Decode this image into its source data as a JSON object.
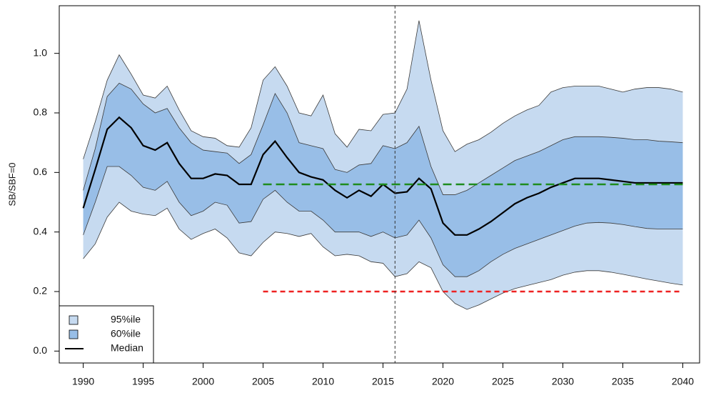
{
  "chart_data": {
    "type": "line",
    "y_label": "SB/SBF=0",
    "x": [
      1990,
      1991,
      1992,
      1993,
      1994,
      1995,
      1996,
      1997,
      1998,
      1999,
      2000,
      2001,
      2002,
      2003,
      2004,
      2005,
      2006,
      2007,
      2008,
      2009,
      2010,
      2011,
      2012,
      2013,
      2014,
      2015,
      2016,
      2017,
      2018,
      2019,
      2020,
      2021,
      2022,
      2023,
      2024,
      2025,
      2026,
      2027,
      2028,
      2029,
      2030,
      2031,
      2032,
      2033,
      2034,
      2035,
      2036,
      2037,
      2038,
      2039,
      2040
    ],
    "series": [
      {
        "name": "95%ile",
        "color": "#c6daf0",
        "upper": [
          0.645,
          0.77,
          0.91,
          0.995,
          0.93,
          0.86,
          0.85,
          0.89,
          0.81,
          0.74,
          0.72,
          0.715,
          0.69,
          0.685,
          0.75,
          0.91,
          0.955,
          0.89,
          0.8,
          0.79,
          0.86,
          0.73,
          0.685,
          0.745,
          0.74,
          0.795,
          0.8,
          0.88,
          1.11,
          0.91,
          0.74,
          0.67,
          0.695,
          0.71,
          0.735,
          0.765,
          0.79,
          0.81,
          0.825,
          0.87,
          0.885,
          0.89,
          0.89,
          0.89,
          0.88,
          0.87,
          0.88,
          0.885,
          0.885,
          0.88,
          0.87
        ],
        "lower": [
          0.31,
          0.36,
          0.45,
          0.5,
          0.47,
          0.46,
          0.455,
          0.48,
          0.41,
          0.375,
          0.395,
          0.41,
          0.38,
          0.33,
          0.32,
          0.365,
          0.4,
          0.395,
          0.385,
          0.395,
          0.35,
          0.32,
          0.325,
          0.32,
          0.3,
          0.295,
          0.25,
          0.26,
          0.3,
          0.28,
          0.2,
          0.16,
          0.14,
          0.155,
          0.175,
          0.195,
          0.21,
          0.22,
          0.23,
          0.24,
          0.255,
          0.265,
          0.27,
          0.27,
          0.265,
          0.258,
          0.25,
          0.242,
          0.235,
          0.228,
          0.222
        ]
      },
      {
        "name": "60%ile",
        "color": "#98bee7",
        "upper": [
          0.54,
          0.68,
          0.855,
          0.9,
          0.88,
          0.83,
          0.8,
          0.815,
          0.75,
          0.7,
          0.675,
          0.67,
          0.665,
          0.63,
          0.66,
          0.76,
          0.865,
          0.8,
          0.7,
          0.69,
          0.68,
          0.61,
          0.6,
          0.625,
          0.63,
          0.69,
          0.68,
          0.7,
          0.755,
          0.62,
          0.525,
          0.525,
          0.54,
          0.565,
          0.59,
          0.615,
          0.64,
          0.655,
          0.67,
          0.69,
          0.71,
          0.72,
          0.72,
          0.72,
          0.718,
          0.715,
          0.71,
          0.71,
          0.705,
          0.703,
          0.7
        ],
        "lower": [
          0.39,
          0.5,
          0.62,
          0.62,
          0.59,
          0.55,
          0.54,
          0.57,
          0.5,
          0.455,
          0.47,
          0.5,
          0.49,
          0.43,
          0.435,
          0.51,
          0.54,
          0.5,
          0.47,
          0.47,
          0.44,
          0.4,
          0.4,
          0.4,
          0.385,
          0.4,
          0.38,
          0.39,
          0.44,
          0.38,
          0.29,
          0.25,
          0.25,
          0.27,
          0.3,
          0.325,
          0.345,
          0.36,
          0.375,
          0.39,
          0.405,
          0.42,
          0.43,
          0.432,
          0.43,
          0.425,
          0.418,
          0.412,
          0.41,
          0.41,
          0.41
        ]
      },
      {
        "name": "Median",
        "color": "#000000",
        "values": [
          0.48,
          0.61,
          0.745,
          0.785,
          0.75,
          0.69,
          0.675,
          0.7,
          0.63,
          0.58,
          0.58,
          0.595,
          0.59,
          0.56,
          0.56,
          0.66,
          0.705,
          0.65,
          0.6,
          0.585,
          0.575,
          0.54,
          0.515,
          0.54,
          0.52,
          0.56,
          0.53,
          0.535,
          0.58,
          0.545,
          0.43,
          0.39,
          0.39,
          0.41,
          0.435,
          0.465,
          0.495,
          0.515,
          0.53,
          0.55,
          0.565,
          0.58,
          0.58,
          0.58,
          0.575,
          0.57,
          0.565,
          0.565,
          0.565,
          0.565,
          0.565
        ]
      }
    ],
    "hlines": [
      {
        "value": 0.56,
        "x_from": 2005,
        "x_to": 2040,
        "color": "#1e8c1e"
      },
      {
        "value": 0.2,
        "x_from": 2005,
        "x_to": 2040,
        "color": "#ee2222"
      }
    ],
    "vline": 2016,
    "xlim": [
      1988,
      2041.4
    ],
    "ylim": [
      -0.04,
      1.16
    ],
    "xticks": [
      1990,
      1995,
      2000,
      2005,
      2010,
      2015,
      2020,
      2025,
      2030,
      2035,
      2040
    ],
    "yticks": [
      {
        "value": 0,
        "label": "0.0"
      },
      0.2,
      0.4,
      0.6,
      0.8,
      {
        "value": 1,
        "label": "1.0"
      }
    ],
    "legend": "bottom-left"
  }
}
